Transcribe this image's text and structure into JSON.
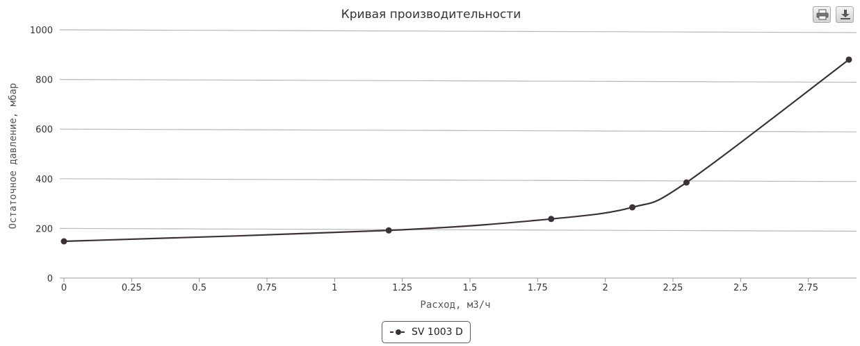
{
  "toolbar": {
    "print_icon": "printer-icon",
    "download_icon": "download-icon"
  },
  "colors": {
    "series": "#3a3238",
    "grid": "#b8b8b8",
    "background": "#ffffff"
  },
  "chart_data": {
    "type": "line",
    "title": "Кривая производительности",
    "xlabel": "Расход, м3/ч",
    "ylabel": "Остаточное давление, мбар",
    "xlim": [
      0,
      2.9
    ],
    "ylim": [
      0,
      1000
    ],
    "xticks": [
      0,
      0.25,
      0.5,
      0.75,
      1,
      1.25,
      1.5,
      1.75,
      2,
      2.25,
      2.5,
      2.75
    ],
    "xtick_labels": [
      "0",
      "0.25",
      "0.5",
      "0.75",
      "1",
      "1.25",
      "1.5",
      "1.75",
      "2",
      "2.25",
      "2.5",
      "2.75"
    ],
    "yticks": [
      0,
      200,
      400,
      600,
      800,
      1000
    ],
    "ytick_labels": [
      "0",
      "200",
      "400",
      "600",
      "800",
      "1000"
    ],
    "grid": "horizontal",
    "legend_position": "bottom-center",
    "smooth": true,
    "series": [
      {
        "name": "SV 1003 D",
        "x": [
          0,
          1.2,
          1.8,
          2.1,
          2.3,
          2.9
        ],
        "y": [
          148,
          192,
          238,
          285,
          385,
          880
        ]
      }
    ]
  }
}
